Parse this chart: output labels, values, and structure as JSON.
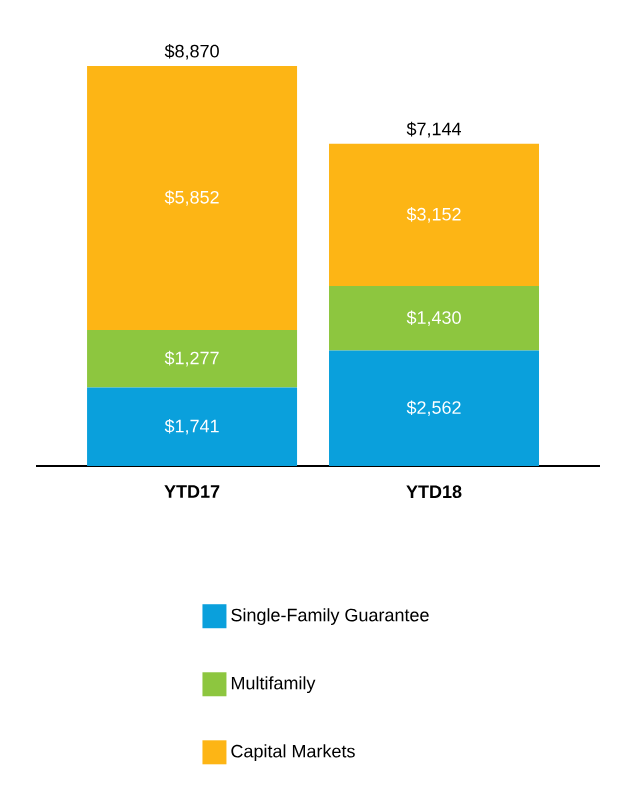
{
  "chart_data": {
    "type": "bar",
    "stacked": true,
    "categories": [
      "YTD17",
      "YTD18"
    ],
    "series": [
      {
        "name": "Single-Family Guarantee",
        "color": "#0aa0dc",
        "values": [
          1741,
          2562
        ],
        "value_labels": [
          "$1,741",
          "$2,562"
        ]
      },
      {
        "name": "Multifamily",
        "color": "#8dc63f",
        "values": [
          1277,
          1430
        ],
        "value_labels": [
          "$1,277",
          "$1,430"
        ]
      },
      {
        "name": "Capital Markets",
        "color": "#fdb515",
        "values": [
          5852,
          3152
        ],
        "value_labels": [
          "$5,852",
          "$3,152"
        ]
      }
    ],
    "totals": [
      "$8,870",
      "$7,144"
    ],
    "legend": "bottom"
  }
}
